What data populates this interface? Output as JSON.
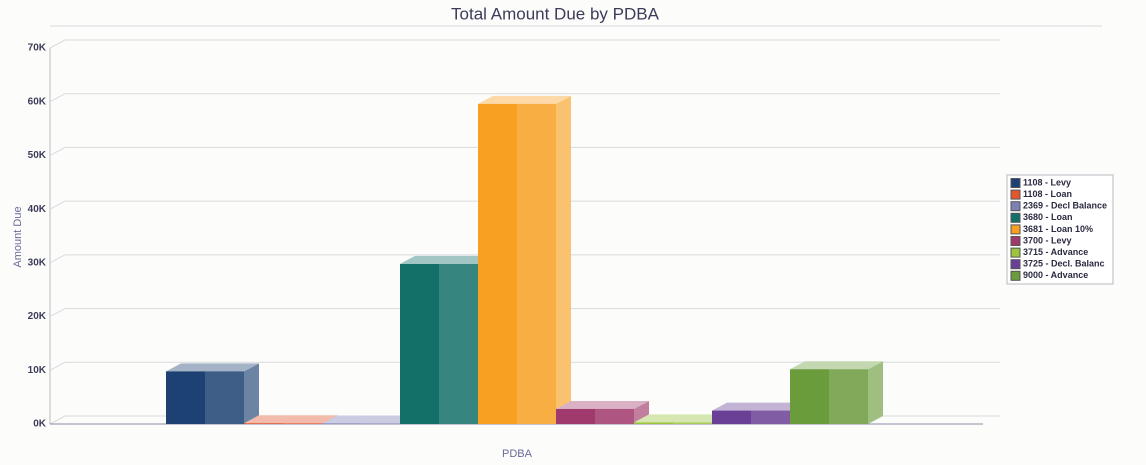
{
  "chart_data": {
    "type": "bar3d",
    "title": "Total Amount Due by PDBA",
    "x_axis_label": "PDBA",
    "y_axis_label": "Amount Due",
    "ylim": [
      0,
      70000
    ],
    "yticks": [
      {
        "value": 0,
        "label": "0K"
      },
      {
        "value": 10000,
        "label": "10K"
      },
      {
        "value": 20000,
        "label": "20K"
      },
      {
        "value": 30000,
        "label": "30K"
      },
      {
        "value": 40000,
        "label": "40K"
      },
      {
        "value": 50000,
        "label": "50K"
      },
      {
        "value": 60000,
        "label": "60K"
      },
      {
        "value": 70000,
        "label": "70K"
      }
    ],
    "grid": true,
    "series": [
      {
        "name": "1108 - Levy",
        "color": "#1d4172",
        "values": [
          9800
        ]
      },
      {
        "name": "1108 - Loan",
        "color": "#e2562c",
        "values": [
          150
        ]
      },
      {
        "name": "2369 - Decl Balance",
        "color": "#7c80b4",
        "values": [
          100
        ]
      },
      {
        "name": "3680 - Loan",
        "color": "#137068",
        "values": [
          29800
        ]
      },
      {
        "name": "3681 - Loan 10%",
        "color": "#f7a022",
        "values": [
          59600
        ]
      },
      {
        "name": "3700 - Levy",
        "color": "#a0396c",
        "values": [
          2800
        ]
      },
      {
        "name": "3715 - Advance",
        "color": "#9cc43c",
        "values": [
          300
        ]
      },
      {
        "name": "3725 - Decl. Balanc",
        "color": "#6a4096",
        "values": [
          2500
        ]
      },
      {
        "name": "9000 - Advance",
        "color": "#6a9c3c",
        "values": [
          10200
        ]
      }
    ]
  }
}
